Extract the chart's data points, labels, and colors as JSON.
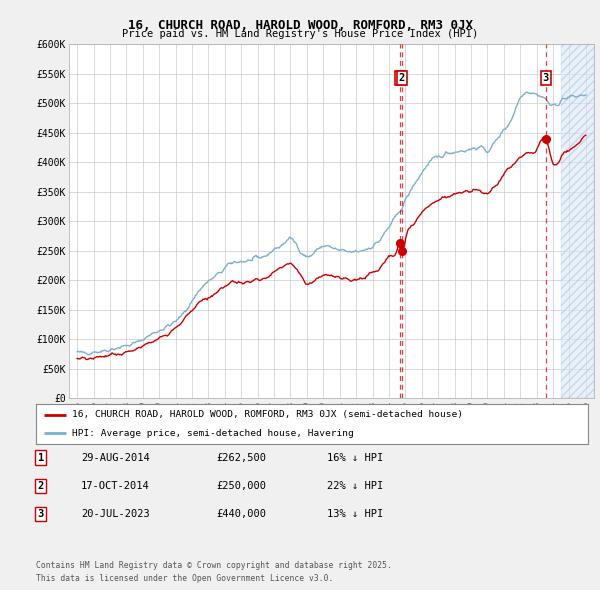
{
  "title": "16, CHURCH ROAD, HAROLD WOOD, ROMFORD, RM3 0JX",
  "subtitle": "Price paid vs. HM Land Registry's House Price Index (HPI)",
  "legend_label_red": "16, CHURCH ROAD, HAROLD WOOD, ROMFORD, RM3 0JX (semi-detached house)",
  "legend_label_blue": "HPI: Average price, semi-detached house, Havering",
  "footer": "Contains HM Land Registry data © Crown copyright and database right 2025.\nThis data is licensed under the Open Government Licence v3.0.",
  "transactions": [
    {
      "num": 1,
      "date": "29-AUG-2014",
      "date_x": 2014.66,
      "price": 262500,
      "label": "1",
      "pct": "16% ↓ HPI"
    },
    {
      "num": 2,
      "date": "17-OCT-2014",
      "date_x": 2014.79,
      "price": 250000,
      "label": "2",
      "pct": "22% ↓ HPI"
    },
    {
      "num": 3,
      "date": "20-JUL-2023",
      "date_x": 2023.55,
      "price": 440000,
      "label": "3",
      "pct": "13% ↓ HPI"
    }
  ],
  "ylim": [
    0,
    600000
  ],
  "xlim": [
    1994.5,
    2026.5
  ],
  "yticks": [
    0,
    50000,
    100000,
    150000,
    200000,
    250000,
    300000,
    350000,
    400000,
    450000,
    500000,
    550000,
    600000
  ],
  "ytick_labels": [
    "£0",
    "£50K",
    "£100K",
    "£150K",
    "£200K",
    "£250K",
    "£300K",
    "£350K",
    "£400K",
    "£450K",
    "£500K",
    "£550K",
    "£600K"
  ],
  "background_color": "#f0f0f0",
  "plot_bg_color": "#ffffff",
  "grid_color": "#cccccc",
  "red_color": "#cc0000",
  "blue_color": "#7bafd4",
  "hatch_color": "#d8e8f5",
  "hpi_base": [
    [
      1995.0,
      78000
    ],
    [
      1995.5,
      77000
    ],
    [
      1996.0,
      79000
    ],
    [
      1996.5,
      80000
    ],
    [
      1997.0,
      83000
    ],
    [
      1997.5,
      86000
    ],
    [
      1998.0,
      89000
    ],
    [
      1998.5,
      93000
    ],
    [
      1999.0,
      100000
    ],
    [
      1999.5,
      108000
    ],
    [
      2000.0,
      115000
    ],
    [
      2000.5,
      122000
    ],
    [
      2001.0,
      130000
    ],
    [
      2001.5,
      145000
    ],
    [
      2002.0,
      165000
    ],
    [
      2002.5,
      185000
    ],
    [
      2003.0,
      198000
    ],
    [
      2003.5,
      208000
    ],
    [
      2004.0,
      220000
    ],
    [
      2004.5,
      230000
    ],
    [
      2005.0,
      232000
    ],
    [
      2005.5,
      233000
    ],
    [
      2006.0,
      237000
    ],
    [
      2006.5,
      242000
    ],
    [
      2007.0,
      252000
    ],
    [
      2007.5,
      260000
    ],
    [
      2008.0,
      270000
    ],
    [
      2008.5,
      255000
    ],
    [
      2009.0,
      240000
    ],
    [
      2009.5,
      248000
    ],
    [
      2010.0,
      258000
    ],
    [
      2010.5,
      255000
    ],
    [
      2011.0,
      250000
    ],
    [
      2011.5,
      248000
    ],
    [
      2012.0,
      248000
    ],
    [
      2012.5,
      252000
    ],
    [
      2013.0,
      258000
    ],
    [
      2013.5,
      270000
    ],
    [
      2014.0,
      290000
    ],
    [
      2014.5,
      310000
    ],
    [
      2015.0,
      335000
    ],
    [
      2015.5,
      360000
    ],
    [
      2016.0,
      382000
    ],
    [
      2016.5,
      400000
    ],
    [
      2017.0,
      408000
    ],
    [
      2017.5,
      415000
    ],
    [
      2018.0,
      418000
    ],
    [
      2018.5,
      420000
    ],
    [
      2019.0,
      422000
    ],
    [
      2019.5,
      425000
    ],
    [
      2020.0,
      420000
    ],
    [
      2020.5,
      435000
    ],
    [
      2021.0,
      455000
    ],
    [
      2021.5,
      475000
    ],
    [
      2022.0,
      510000
    ],
    [
      2022.5,
      520000
    ],
    [
      2023.0,
      515000
    ],
    [
      2023.5,
      508000
    ],
    [
      2024.0,
      495000
    ],
    [
      2024.5,
      505000
    ],
    [
      2025.0,
      510000
    ],
    [
      2025.5,
      512000
    ],
    [
      2026.0,
      515000
    ]
  ],
  "red_base": [
    [
      1995.0,
      68000
    ],
    [
      1995.5,
      67000
    ],
    [
      1996.0,
      68000
    ],
    [
      1996.5,
      70000
    ],
    [
      1997.0,
      72000
    ],
    [
      1997.5,
      75000
    ],
    [
      1998.0,
      78000
    ],
    [
      1998.5,
      83000
    ],
    [
      1999.0,
      88000
    ],
    [
      1999.5,
      95000
    ],
    [
      2000.0,
      102000
    ],
    [
      2000.5,
      110000
    ],
    [
      2001.0,
      120000
    ],
    [
      2001.5,
      133000
    ],
    [
      2002.0,
      150000
    ],
    [
      2002.5,
      163000
    ],
    [
      2003.0,
      170000
    ],
    [
      2003.5,
      178000
    ],
    [
      2004.0,
      188000
    ],
    [
      2004.5,
      198000
    ],
    [
      2005.0,
      195000
    ],
    [
      2005.5,
      198000
    ],
    [
      2006.0,
      200000
    ],
    [
      2006.5,
      205000
    ],
    [
      2007.0,
      213000
    ],
    [
      2007.5,
      222000
    ],
    [
      2008.0,
      228000
    ],
    [
      2008.5,
      215000
    ],
    [
      2009.0,
      195000
    ],
    [
      2009.5,
      200000
    ],
    [
      2010.0,
      210000
    ],
    [
      2010.5,
      207000
    ],
    [
      2011.0,
      205000
    ],
    [
      2011.5,
      202000
    ],
    [
      2012.0,
      200000
    ],
    [
      2012.5,
      205000
    ],
    [
      2013.0,
      212000
    ],
    [
      2013.5,
      222000
    ],
    [
      2014.0,
      240000
    ],
    [
      2014.5,
      252000
    ],
    [
      2014.66,
      262500
    ],
    [
      2014.79,
      250000
    ],
    [
      2015.0,
      270000
    ],
    [
      2015.5,
      295000
    ],
    [
      2016.0,
      315000
    ],
    [
      2016.5,
      328000
    ],
    [
      2017.0,
      335000
    ],
    [
      2017.5,
      340000
    ],
    [
      2018.0,
      345000
    ],
    [
      2018.5,
      348000
    ],
    [
      2019.0,
      350000
    ],
    [
      2019.5,
      352000
    ],
    [
      2020.0,
      348000
    ],
    [
      2020.5,
      360000
    ],
    [
      2021.0,
      378000
    ],
    [
      2021.5,
      395000
    ],
    [
      2022.0,
      408000
    ],
    [
      2022.5,
      415000
    ],
    [
      2023.0,
      420000
    ],
    [
      2023.55,
      440000
    ],
    [
      2024.0,
      400000
    ],
    [
      2024.5,
      410000
    ],
    [
      2025.0,
      420000
    ],
    [
      2025.5,
      430000
    ],
    [
      2026.0,
      445000
    ]
  ]
}
